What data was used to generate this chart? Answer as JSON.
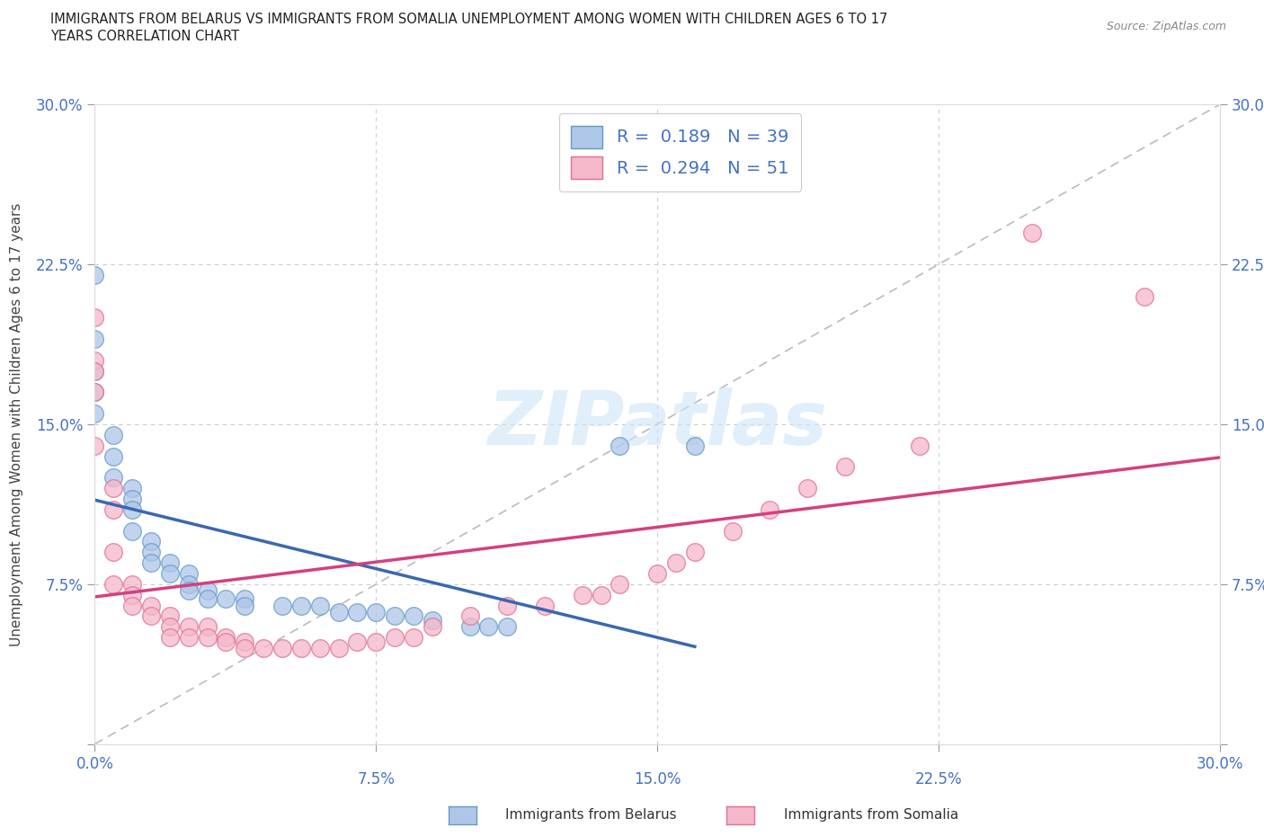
{
  "title_line1": "IMMIGRANTS FROM BELARUS VS IMMIGRANTS FROM SOMALIA UNEMPLOYMENT AMONG WOMEN WITH CHILDREN AGES 6 TO 17",
  "title_line2": "YEARS CORRELATION CHART",
  "source": "Source: ZipAtlas.com",
  "ylabel": "Unemployment Among Women with Children Ages 6 to 17 years",
  "xlim": [
    0.0,
    0.3
  ],
  "ylim": [
    0.0,
    0.3
  ],
  "xticks": [
    0.0,
    0.075,
    0.15,
    0.225,
    0.3
  ],
  "yticks": [
    0.0,
    0.075,
    0.15,
    0.225,
    0.3
  ],
  "xticklabels_bottom": [
    "0.0%",
    "",
    "",
    "",
    "30.0%"
  ],
  "xticklabels_bottom_mid": [
    "",
    "7.5%",
    "15.0%",
    "22.5%",
    ""
  ],
  "yticklabels_left": [
    "",
    "7.5%",
    "15.0%",
    "22.5%",
    "30.0%"
  ],
  "yticklabels_right": [
    "",
    "7.5%",
    "15.0%",
    "22.5%",
    "30.0%"
  ],
  "belarus_color": "#aec6e8",
  "somalia_color": "#f5b8cb",
  "belarus_edge": "#6699cc",
  "somalia_edge": "#e07090",
  "trend_belarus_color": "#3a68b0",
  "trend_somalia_color": "#d44080",
  "trend_diagonal_color": "#bbbbbb",
  "R_belarus": 0.189,
  "N_belarus": 39,
  "R_somalia": 0.294,
  "N_somalia": 51,
  "legend_label_belarus": "Immigrants from Belarus",
  "legend_label_somalia": "Immigrants from Somalia",
  "watermark": "ZIPatlas",
  "belarus_x": [
    0.0,
    0.0,
    0.0,
    0.0,
    0.0,
    0.005,
    0.005,
    0.005,
    0.01,
    0.01,
    0.01,
    0.01,
    0.015,
    0.015,
    0.015,
    0.02,
    0.02,
    0.025,
    0.025,
    0.025,
    0.03,
    0.03,
    0.035,
    0.04,
    0.04,
    0.05,
    0.055,
    0.06,
    0.065,
    0.07,
    0.075,
    0.08,
    0.085,
    0.09,
    0.1,
    0.105,
    0.11,
    0.14,
    0.16
  ],
  "belarus_y": [
    0.22,
    0.19,
    0.175,
    0.165,
    0.155,
    0.145,
    0.135,
    0.125,
    0.12,
    0.115,
    0.11,
    0.1,
    0.095,
    0.09,
    0.085,
    0.085,
    0.08,
    0.08,
    0.075,
    0.072,
    0.072,
    0.068,
    0.068,
    0.068,
    0.065,
    0.065,
    0.065,
    0.065,
    0.062,
    0.062,
    0.062,
    0.06,
    0.06,
    0.058,
    0.055,
    0.055,
    0.055,
    0.14,
    0.14
  ],
  "somalia_x": [
    0.0,
    0.0,
    0.0,
    0.0,
    0.0,
    0.005,
    0.005,
    0.005,
    0.005,
    0.01,
    0.01,
    0.01,
    0.015,
    0.015,
    0.02,
    0.02,
    0.02,
    0.025,
    0.025,
    0.03,
    0.03,
    0.035,
    0.035,
    0.04,
    0.04,
    0.045,
    0.05,
    0.055,
    0.06,
    0.065,
    0.07,
    0.075,
    0.08,
    0.085,
    0.09,
    0.1,
    0.11,
    0.12,
    0.13,
    0.135,
    0.14,
    0.15,
    0.155,
    0.16,
    0.17,
    0.18,
    0.19,
    0.2,
    0.22,
    0.25,
    0.28
  ],
  "somalia_y": [
    0.2,
    0.18,
    0.175,
    0.165,
    0.14,
    0.12,
    0.11,
    0.09,
    0.075,
    0.075,
    0.07,
    0.065,
    0.065,
    0.06,
    0.06,
    0.055,
    0.05,
    0.055,
    0.05,
    0.055,
    0.05,
    0.05,
    0.048,
    0.048,
    0.045,
    0.045,
    0.045,
    0.045,
    0.045,
    0.045,
    0.048,
    0.048,
    0.05,
    0.05,
    0.055,
    0.06,
    0.065,
    0.065,
    0.07,
    0.07,
    0.075,
    0.08,
    0.085,
    0.09,
    0.1,
    0.11,
    0.12,
    0.13,
    0.14,
    0.24,
    0.21
  ]
}
